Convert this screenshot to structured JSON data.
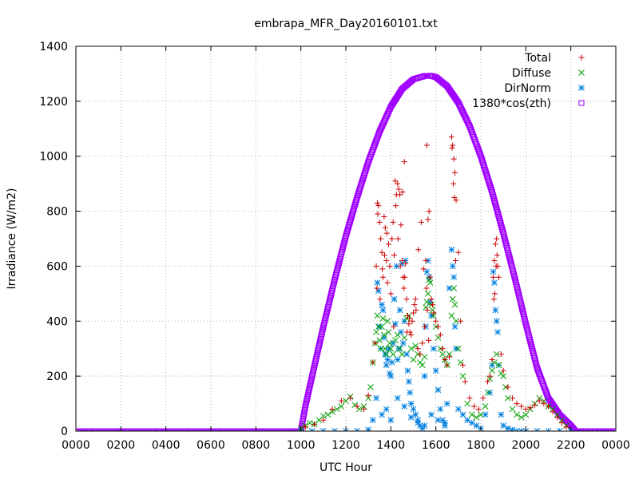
{
  "chart_data": {
    "type": "scatter",
    "title": "embrapa_MFR_Day20160101.txt",
    "xlabel": "UTC Hour",
    "ylabel": "Irradiance (W/m2)",
    "xlim": [
      0,
      24
    ],
    "ylim": [
      0,
      1400
    ],
    "grid": true,
    "legend_position": "top-right",
    "x_ticks": [
      {
        "value": 0,
        "label": "0000"
      },
      {
        "value": 2,
        "label": "0200"
      },
      {
        "value": 4,
        "label": "0400"
      },
      {
        "value": 6,
        "label": "0600"
      },
      {
        "value": 8,
        "label": "0800"
      },
      {
        "value": 10,
        "label": "1000"
      },
      {
        "value": 12,
        "label": "1200"
      },
      {
        "value": 14,
        "label": "1400"
      },
      {
        "value": 16,
        "label": "1600"
      },
      {
        "value": 18,
        "label": "1800"
      },
      {
        "value": 20,
        "label": "2000"
      },
      {
        "value": 22,
        "label": "2200"
      },
      {
        "value": 24,
        "label": "0000"
      }
    ],
    "y_ticks": [
      0,
      200,
      400,
      600,
      800,
      1000,
      1200,
      1400
    ],
    "series": [
      {
        "name": "Total",
        "color": "#cc0000",
        "marker": "plus",
        "x": [
          10.2,
          10.6,
          11.0,
          11.4,
          11.8,
          12.2,
          12.5,
          12.8,
          13.0,
          13.2,
          13.3,
          13.35,
          13.4,
          13.45,
          13.5,
          13.55,
          13.6,
          13.65,
          13.7,
          13.75,
          13.8,
          13.85,
          13.9,
          13.95,
          14.0,
          14.05,
          14.1,
          14.15,
          14.2,
          14.25,
          14.3,
          14.35,
          14.4,
          14.45,
          14.5,
          14.55,
          14.6,
          14.65,
          14.7,
          14.75,
          14.8,
          14.85,
          14.9,
          14.95,
          15.0,
          15.05,
          15.1,
          15.2,
          15.3,
          15.4,
          15.5,
          15.55,
          15.6,
          15.65,
          15.7,
          15.75,
          15.8,
          15.85,
          15.9,
          16.0,
          16.1,
          16.2,
          16.3,
          16.4,
          16.5,
          16.6,
          16.7,
          16.75,
          16.8,
          16.85,
          16.9,
          17.0,
          17.1,
          17.2,
          17.3,
          17.5,
          17.7,
          17.9,
          18.1,
          18.3,
          18.4,
          18.5,
          18.55,
          18.6,
          18.65,
          18.7,
          18.75,
          18.8,
          18.9,
          19.0,
          19.2,
          19.4,
          19.6,
          19.8,
          20.0,
          20.2,
          20.4,
          20.6,
          20.8,
          21.0,
          21.2,
          21.4,
          21.6,
          21.8,
          13.38,
          13.42,
          13.52,
          13.62,
          13.72,
          13.82,
          14.12,
          14.22,
          14.32,
          14.42,
          14.52,
          14.58,
          14.62,
          14.72,
          14.82,
          15.12,
          15.22,
          15.35,
          15.45,
          15.58,
          15.62,
          15.68,
          16.72,
          16.78,
          16.82,
          16.88,
          18.58,
          18.62,
          18.68,
          18.72
        ],
        "y": [
          15,
          25,
          40,
          80,
          110,
          120,
          90,
          80,
          130,
          250,
          320,
          600,
          830,
          820,
          760,
          700,
          650,
          560,
          780,
          740,
          620,
          540,
          680,
          600,
          500,
          700,
          760,
          640,
          910,
          860,
          900,
          880,
          860,
          750,
          620,
          560,
          980,
          610,
          480,
          420,
          390,
          360,
          350,
          400,
          430,
          460,
          480,
          300,
          280,
          320,
          380,
          620,
          1040,
          770,
          800,
          560,
          480,
          460,
          430,
          400,
          380,
          350,
          300,
          260,
          240,
          270,
          1070,
          1040,
          990,
          940,
          840,
          650,
          400,
          240,
          180,
          120,
          90,
          80,
          120,
          180,
          200,
          260,
          560,
          620,
          680,
          700,
          600,
          560,
          280,
          220,
          160,
          120,
          100,
          90,
          80,
          85,
          95,
          110,
          100,
          90,
          70,
          50,
          30,
          15,
          520,
          790,
          480,
          590,
          640,
          720,
          380,
          820,
          700,
          600,
          870,
          520,
          560,
          360,
          410,
          440,
          660,
          760,
          590,
          520,
          440,
          330,
          1030,
          900,
          850,
          620,
          480,
          500,
          600,
          640
        ]
      },
      {
        "name": "Diffuse",
        "color": "#00a000",
        "marker": "cross",
        "x": [
          10.0,
          10.2,
          10.4,
          10.6,
          10.8,
          11.0,
          11.2,
          11.4,
          11.6,
          11.8,
          12.0,
          12.2,
          12.4,
          12.6,
          12.8,
          13.0,
          13.1,
          13.2,
          13.3,
          13.35,
          13.4,
          13.45,
          13.5,
          13.55,
          13.6,
          13.65,
          13.7,
          13.75,
          13.8,
          13.85,
          13.9,
          13.95,
          14.0,
          14.1,
          14.2,
          14.3,
          14.4,
          14.5,
          14.6,
          14.7,
          14.8,
          14.9,
          15.0,
          15.1,
          15.2,
          15.3,
          15.4,
          15.5,
          15.55,
          15.6,
          15.65,
          15.7,
          15.75,
          15.8,
          15.85,
          15.9,
          16.0,
          16.1,
          16.2,
          16.3,
          16.4,
          16.5,
          16.6,
          16.7,
          16.75,
          16.8,
          16.85,
          16.9,
          17.0,
          17.1,
          17.2,
          17.4,
          17.6,
          17.8,
          18.0,
          18.2,
          18.3,
          18.4,
          18.5,
          18.6,
          18.7,
          18.8,
          18.9,
          19.0,
          19.1,
          19.2,
          19.4,
          19.6,
          19.8,
          20.0,
          20.2,
          20.4,
          20.6,
          20.8,
          21.0,
          21.2,
          21.4,
          21.6,
          21.8
        ],
        "y": [
          10,
          20,
          30,
          25,
          40,
          55,
          60,
          70,
          80,
          90,
          110,
          125,
          95,
          80,
          90,
          120,
          160,
          250,
          320,
          360,
          420,
          380,
          330,
          300,
          380,
          410,
          350,
          300,
          280,
          400,
          360,
          320,
          300,
          280,
          330,
          350,
          300,
          280,
          340,
          410,
          420,
          300,
          260,
          310,
          280,
          250,
          240,
          270,
          450,
          470,
          500,
          550,
          540,
          460,
          440,
          420,
          380,
          340,
          300,
          280,
          260,
          240,
          280,
          420,
          480,
          520,
          460,
          400,
          300,
          250,
          200,
          100,
          60,
          50,
          60,
          90,
          140,
          190,
          220,
          250,
          280,
          240,
          210,
          200,
          160,
          120,
          80,
          60,
          50,
          60,
          80,
          100,
          120,
          110,
          90,
          80,
          60,
          40,
          20
        ]
      },
      {
        "name": "DirNorm",
        "color": "#0080e0",
        "marker": "star",
        "x": [
          10.0,
          10.5,
          11.0,
          11.5,
          12.0,
          12.5,
          13.0,
          13.2,
          13.35,
          13.4,
          13.45,
          13.5,
          13.55,
          13.6,
          13.65,
          13.7,
          13.75,
          13.8,
          13.85,
          13.9,
          13.95,
          14.0,
          14.05,
          14.1,
          14.15,
          14.2,
          14.25,
          14.3,
          14.35,
          14.4,
          14.45,
          14.5,
          14.55,
          14.6,
          14.65,
          14.7,
          14.75,
          14.8,
          14.85,
          14.9,
          15.0,
          15.1,
          15.2,
          15.3,
          15.4,
          15.5,
          15.55,
          15.6,
          15.65,
          15.7,
          15.75,
          15.8,
          15.9,
          16.0,
          16.1,
          16.2,
          16.3,
          16.4,
          16.5,
          16.6,
          16.7,
          16.75,
          16.8,
          16.85,
          16.9,
          17.0,
          17.2,
          17.4,
          17.6,
          17.8,
          18.0,
          18.2,
          18.4,
          18.5,
          18.55,
          18.6,
          18.65,
          18.7,
          18.75,
          18.8,
          18.9,
          19.0,
          19.2,
          19.4,
          19.6,
          19.8,
          20.0,
          20.5,
          21.0,
          21.5,
          22.0,
          13.6,
          13.8,
          14.0,
          14.3,
          14.6,
          14.9,
          15.2,
          15.5,
          15.8,
          16.1,
          16.4
        ],
        "y": [
          0,
          0,
          0,
          0,
          0,
          0,
          5,
          40,
          120,
          540,
          510,
          380,
          300,
          460,
          440,
          340,
          280,
          240,
          260,
          300,
          210,
          200,
          250,
          320,
          480,
          390,
          600,
          260,
          300,
          440,
          360,
          610,
          320,
          400,
          620,
          280,
          220,
          180,
          140,
          100,
          80,
          60,
          40,
          20,
          10,
          200,
          380,
          580,
          620,
          560,
          470,
          420,
          300,
          220,
          150,
          80,
          40,
          20,
          100,
          520,
          660,
          600,
          560,
          380,
          300,
          80,
          60,
          40,
          30,
          20,
          10,
          60,
          140,
          240,
          580,
          540,
          440,
          400,
          360,
          240,
          60,
          20,
          10,
          5,
          0,
          0,
          0,
          0,
          0,
          0,
          0,
          60,
          80,
          40,
          120,
          90,
          50,
          30,
          20,
          60,
          40,
          30
        ]
      },
      {
        "name": "1380*cos(zth)",
        "color": "#a000ff",
        "marker": "square",
        "x": [
          0,
          9.6,
          10.0,
          10.2,
          10.5,
          11.0,
          11.5,
          12.0,
          12.5,
          13.0,
          13.5,
          14.0,
          14.5,
          15.0,
          15.5,
          15.75,
          16.0,
          16.5,
          17.0,
          17.5,
          18.0,
          18.5,
          19.0,
          19.5,
          20.0,
          20.5,
          21.0,
          21.5,
          22.0,
          22.2,
          22.5,
          24.0
        ],
        "y": [
          0,
          0,
          0,
          90,
          200,
          380,
          550,
          710,
          850,
          980,
          1090,
          1180,
          1245,
          1280,
          1292,
          1293,
          1288,
          1255,
          1195,
          1110,
          1000,
          870,
          720,
          560,
          390,
          230,
          120,
          60,
          20,
          0,
          0,
          0
        ]
      }
    ]
  }
}
